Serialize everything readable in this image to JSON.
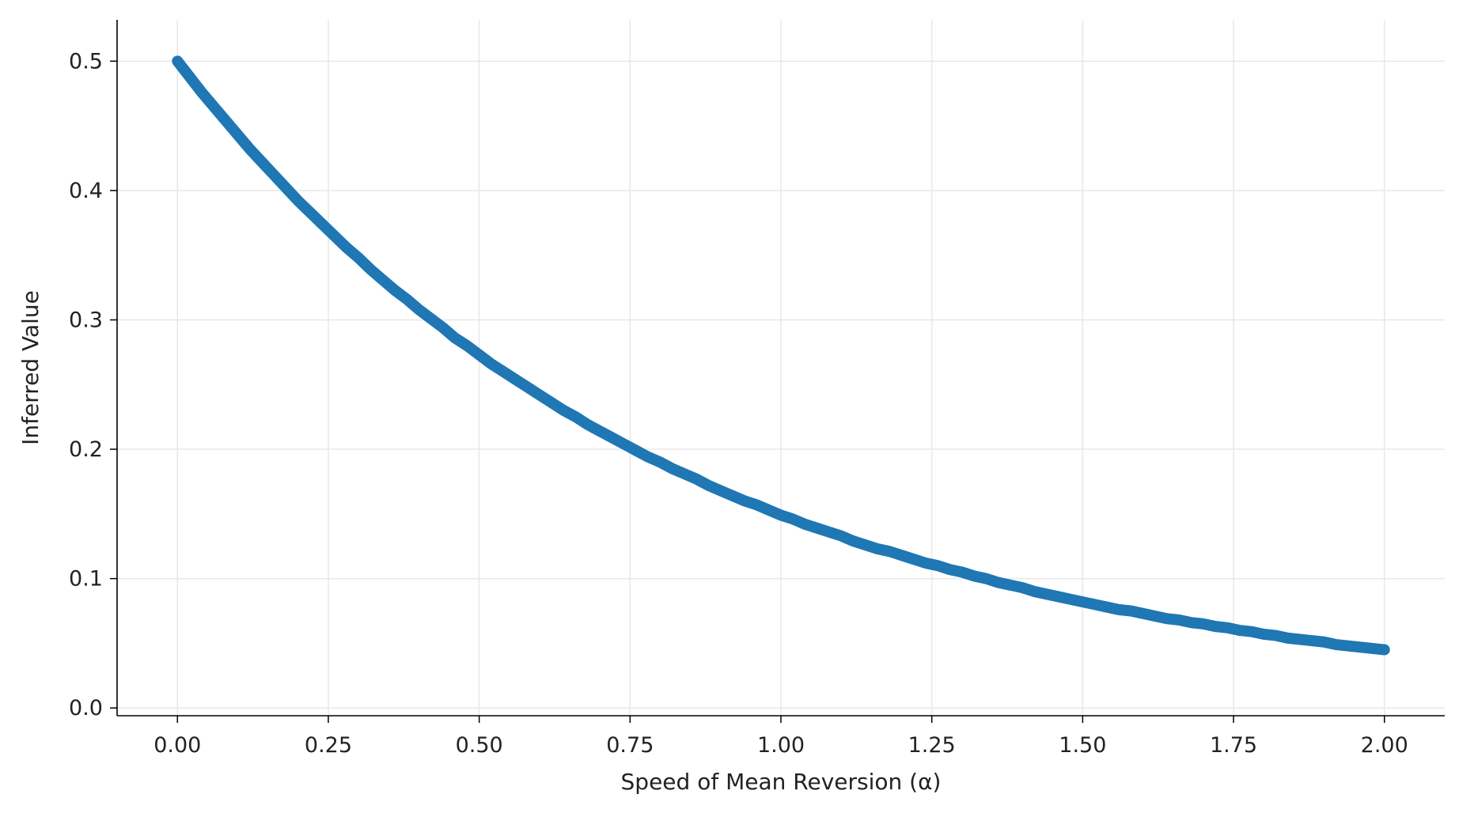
{
  "chart_data": {
    "type": "scatter",
    "title": "",
    "xlabel": "Speed of Mean Reversion (α)",
    "ylabel": "Inferred Value",
    "xlim": [
      -0.1,
      2.1
    ],
    "ylim": [
      -0.006,
      0.532
    ],
    "x_ticks": [
      0.0,
      0.25,
      0.5,
      0.75,
      1.0,
      1.25,
      1.5,
      1.75,
      2.0
    ],
    "x_tick_labels": [
      "0.00",
      "0.25",
      "0.50",
      "0.75",
      "1.00",
      "1.25",
      "1.50",
      "1.75",
      "2.00"
    ],
    "y_ticks": [
      0.0,
      0.1,
      0.2,
      0.3,
      0.4,
      0.5
    ],
    "y_tick_labels": [
      "0.0",
      "0.1",
      "0.2",
      "0.3",
      "0.4",
      "0.5"
    ],
    "grid": true,
    "marker_color": "#1f77b4",
    "series": [
      {
        "x": [
          0.0,
          0.02,
          0.04,
          0.06,
          0.08,
          0.1,
          0.12,
          0.14,
          0.16,
          0.18,
          0.2,
          0.22,
          0.24,
          0.26,
          0.28,
          0.3,
          0.32,
          0.34,
          0.36,
          0.38,
          0.4,
          0.42,
          0.44,
          0.46,
          0.48,
          0.5,
          0.52,
          0.54,
          0.56,
          0.58,
          0.6,
          0.62,
          0.64,
          0.66,
          0.68,
          0.7,
          0.72,
          0.74,
          0.76,
          0.78,
          0.8,
          0.82,
          0.84,
          0.86,
          0.88,
          0.9,
          0.92,
          0.94,
          0.96,
          0.98,
          1.0,
          1.02,
          1.04,
          1.06,
          1.08,
          1.1,
          1.12,
          1.14,
          1.16,
          1.18,
          1.2,
          1.22,
          1.24,
          1.26,
          1.28,
          1.3,
          1.32,
          1.34,
          1.36,
          1.38,
          1.4,
          1.42,
          1.44,
          1.46,
          1.48,
          1.5,
          1.52,
          1.54,
          1.56,
          1.58,
          1.6,
          1.62,
          1.64,
          1.66,
          1.68,
          1.7,
          1.72,
          1.74,
          1.76,
          1.78,
          1.8,
          1.82,
          1.84,
          1.86,
          1.88,
          1.9,
          1.92,
          1.94,
          1.96,
          1.98,
          2.0
        ],
        "y": [
          0.5,
          0.488,
          0.476,
          0.465,
          0.454,
          0.443,
          0.432,
          0.422,
          0.412,
          0.402,
          0.392,
          0.383,
          0.374,
          0.365,
          0.356,
          0.348,
          0.339,
          0.331,
          0.323,
          0.316,
          0.308,
          0.301,
          0.294,
          0.286,
          0.28,
          0.273,
          0.266,
          0.26,
          0.254,
          0.248,
          0.242,
          0.236,
          0.23,
          0.225,
          0.219,
          0.214,
          0.209,
          0.204,
          0.199,
          0.194,
          0.19,
          0.185,
          0.181,
          0.177,
          0.172,
          0.168,
          0.164,
          0.16,
          0.157,
          0.153,
          0.149,
          0.146,
          0.142,
          0.139,
          0.136,
          0.133,
          0.129,
          0.126,
          0.123,
          0.121,
          0.118,
          0.115,
          0.112,
          0.11,
          0.107,
          0.105,
          0.102,
          0.1,
          0.097,
          0.095,
          0.093,
          0.09,
          0.088,
          0.086,
          0.084,
          0.082,
          0.08,
          0.078,
          0.076,
          0.075,
          0.073,
          0.071,
          0.069,
          0.068,
          0.066,
          0.065,
          0.063,
          0.062,
          0.06,
          0.059,
          0.057,
          0.056,
          0.054,
          0.053,
          0.052,
          0.051,
          0.049,
          0.048,
          0.047,
          0.046,
          0.045
        ]
      }
    ]
  }
}
